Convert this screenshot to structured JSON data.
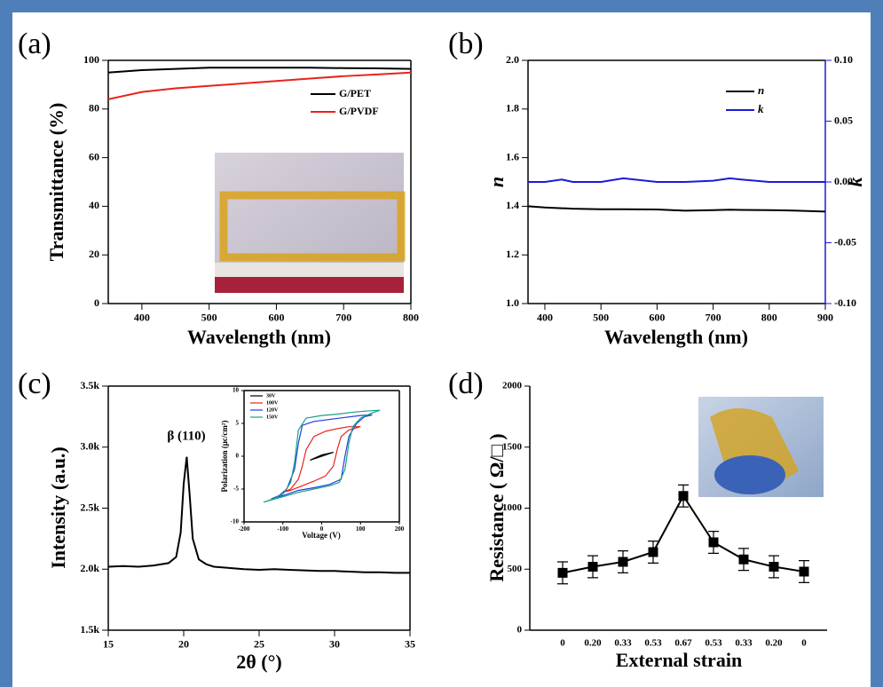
{
  "chart_data": [
    {
      "type": "line",
      "label": "(a)",
      "x_label": "Wavelength (nm)",
      "y_label": "Transmittance (%)",
      "x": [
        350,
        400,
        450,
        500,
        550,
        600,
        650,
        700,
        750,
        800
      ],
      "xlim": [
        350,
        800
      ],
      "xticks": [
        400,
        500,
        600,
        700,
        800
      ],
      "ylim": [
        0,
        100
      ],
      "yticks": [
        0,
        20,
        40,
        60,
        80,
        100
      ],
      "series": [
        {
          "name": "G/PET",
          "color": "#000000",
          "values": [
            95,
            96,
            96.5,
            97,
            97,
            97,
            97,
            96.8,
            96.7,
            96.5
          ]
        },
        {
          "name": "G/PVDF",
          "color": "#e8231b",
          "values": [
            84,
            87,
            88.5,
            89.5,
            90.5,
            91.5,
            92.5,
            93.5,
            94.2,
            95
          ]
        }
      ],
      "legend": "upper right"
    },
    {
      "type": "line",
      "label": "(b)",
      "x_label": "Wavelength (nm)",
      "y_label": "n",
      "y2_label": "k",
      "y2_color": "#1a1adb",
      "x": [
        370,
        400,
        430,
        450,
        500,
        540,
        600,
        650,
        700,
        730,
        750,
        800,
        850,
        900
      ],
      "xlim": [
        370,
        900
      ],
      "xticks": [
        400,
        500,
        600,
        700,
        800,
        900
      ],
      "ylim": [
        1,
        2
      ],
      "yticks": [
        {
          "value": 1,
          "label": "1.0"
        },
        1.2,
        1.4,
        1.6,
        1.8,
        {
          "value": 2,
          "label": "2.0"
        }
      ],
      "y2lim": [
        -0.1,
        0.1
      ],
      "y2ticks": [
        {
          "value": -0.1,
          "label": "-0.10"
        },
        {
          "value": -0.05,
          "label": "-0.05"
        },
        {
          "value": 0,
          "label": "0.00"
        },
        {
          "value": 0.05,
          "label": "0.05"
        },
        {
          "value": 0.1,
          "label": "0.10"
        }
      ],
      "series": [
        {
          "name": "n",
          "color": "#000000",
          "values": [
            1.4,
            1.395,
            1.392,
            1.39,
            1.388,
            1.388,
            1.387,
            1.382,
            1.384,
            1.386,
            1.385,
            1.384,
            1.382,
            1.378
          ]
        },
        {
          "name": "k",
          "color": "#1a1adb",
          "axis": "y2",
          "values": [
            0,
            0,
            0.002,
            0,
            0,
            0.003,
            0,
            0,
            0.001,
            0.003,
            0.002,
            0,
            0,
            0
          ]
        }
      ],
      "legend": "upper right"
    },
    {
      "type": "line",
      "label": "(c)",
      "x_label": "2θ (°)",
      "y_label": "Intensity (a.u.)",
      "annotation": "β (110)",
      "color": "#000000",
      "x": [
        15,
        16,
        17,
        18,
        19,
        19.5,
        19.8,
        20,
        20.2,
        20.4,
        20.6,
        21,
        21.5,
        22,
        23,
        24,
        25,
        26,
        27,
        28,
        29,
        30,
        31,
        32,
        33,
        34,
        35
      ],
      "values": [
        2020,
        2025,
        2020,
        2030,
        2050,
        2100,
        2300,
        2700,
        2920,
        2600,
        2250,
        2080,
        2040,
        2020,
        2010,
        2000,
        1995,
        2000,
        1995,
        1990,
        1985,
        1985,
        1980,
        1975,
        1975,
        1970,
        1970
      ],
      "xlim": [
        15,
        35
      ],
      "xticks": [
        15,
        20,
        25,
        30,
        35
      ],
      "ylim": [
        1500,
        3500
      ],
      "yticks": [
        {
          "value": 1500,
          "label": "1.5k"
        },
        {
          "value": 2000,
          "label": "2.0k"
        },
        {
          "value": 2500,
          "label": "2.5k"
        },
        {
          "value": 3000,
          "label": "3.0k"
        },
        {
          "value": 3500,
          "label": "3.5k"
        }
      ]
    },
    {
      "type": "line",
      "x_label": "Voltage (V)",
      "y_label": "Polarization (μc/cm²)",
      "xlim": [
        -200,
        200
      ],
      "xticks": [
        -200,
        -100,
        0,
        100,
        200
      ],
      "ylim": [
        -10,
        10
      ],
      "yticks": [
        -10,
        -5,
        0,
        5,
        10
      ],
      "series": [
        {
          "name": "30V",
          "color": "#000000",
          "x": [
            -30,
            0,
            30,
            0,
            -30
          ],
          "values": [
            -0.6,
            0,
            0.6,
            0.2,
            -0.6
          ]
        },
        {
          "name": "100V",
          "color": "#e8231b",
          "x": [
            -100,
            -80,
            -50,
            -20,
            10,
            30,
            40,
            50,
            70,
            100,
            70,
            40,
            10,
            -20,
            -40,
            -50,
            -60,
            -80,
            -100
          ],
          "values": [
            -5.5,
            -5.2,
            -4.5,
            -3.8,
            -3,
            -1.5,
            1,
            3,
            4,
            4.5,
            4.5,
            4.2,
            3.8,
            3,
            1,
            -1.5,
            -3.5,
            -5,
            -5.5
          ]
        },
        {
          "name": "120V",
          "color": "#1f3fd6",
          "x": [
            -130,
            -100,
            -60,
            -20,
            20,
            50,
            60,
            70,
            90,
            110,
            130,
            100,
            60,
            20,
            -20,
            -50,
            -60,
            -70,
            -90,
            -110,
            -130
          ],
          "values": [
            -6.5,
            -6,
            -5.2,
            -4.8,
            -4.3,
            -3.5,
            0,
            3,
            5,
            6,
            6.3,
            6.2,
            5.9,
            5.6,
            5.3,
            4.7,
            2,
            -2,
            -5,
            -6,
            -6.5
          ]
        },
        {
          "name": "150V",
          "color": "#17a085",
          "x": [
            -150,
            -120,
            -90,
            -60,
            -20,
            20,
            45,
            60,
            70,
            80,
            100,
            130,
            150,
            120,
            80,
            40,
            0,
            -40,
            -60,
            -70,
            -80,
            -100,
            -130,
            -150
          ],
          "values": [
            -7,
            -6.5,
            -6,
            -5.5,
            -5,
            -4.5,
            -4,
            -2,
            2,
            4.5,
            5.8,
            6.6,
            7,
            6.9,
            6.7,
            6.4,
            6.2,
            5.8,
            4,
            -1,
            -4,
            -5.8,
            -6.6,
            -7
          ]
        }
      ],
      "legend": "upper left"
    },
    {
      "type": "line",
      "label": "(d)",
      "x_label": "External strain",
      "y_label": "Resistance ( Ω/□ )",
      "color": "#000000",
      "categories": [
        "0",
        "0.20",
        "0.33",
        "0.53",
        "0.67",
        "0.53",
        "0.33",
        "0.20",
        "0"
      ],
      "values": [
        470,
        520,
        560,
        640,
        1100,
        720,
        580,
        520,
        480
      ],
      "errors": [
        90,
        90,
        90,
        90,
        90,
        90,
        90,
        90,
        90
      ],
      "ylim": [
        0,
        2000
      ],
      "yticks": [
        0,
        500,
        1000,
        1500,
        2000
      ],
      "marker": "square"
    }
  ]
}
